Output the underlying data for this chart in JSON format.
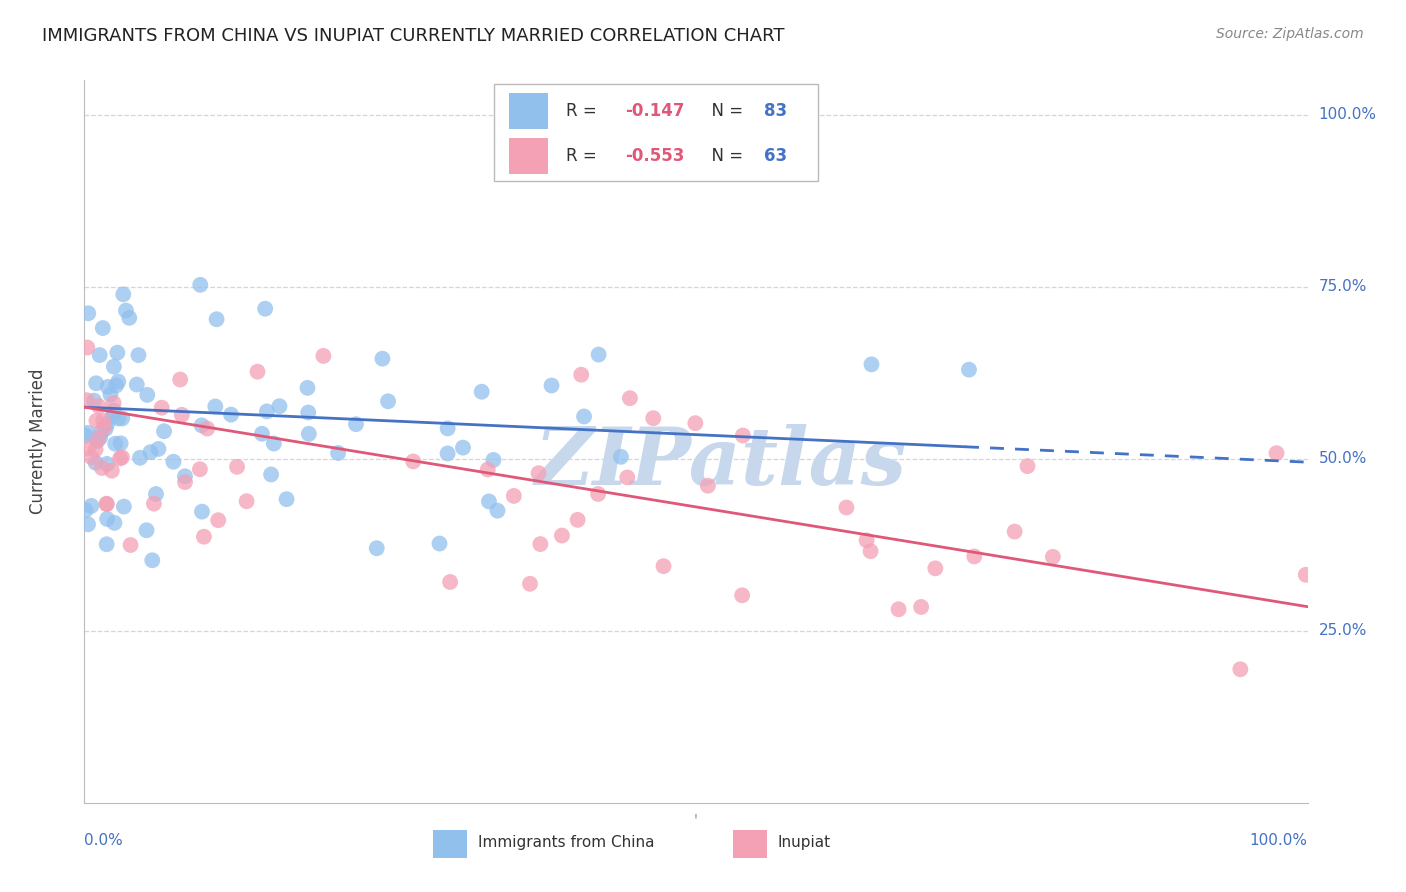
{
  "title": "IMMIGRANTS FROM CHINA VS INUPIAT CURRENTLY MARRIED CORRELATION CHART",
  "source": "Source: ZipAtlas.com",
  "ylabel": "Currently Married",
  "R_china": -0.147,
  "N_china": 83,
  "R_inupiat": -0.553,
  "N_inupiat": 63,
  "color_china": "#92C0ED",
  "color_inupiat": "#F4A0B5",
  "line_color_china": "#4472C4",
  "line_color_inupiat": "#E05878",
  "background_color": "#FFFFFF",
  "grid_color": "#CCCCCC",
  "title_color": "#222222",
  "source_color": "#888888",
  "axis_label_color": "#4472C4",
  "watermark_color": "#C8D8EC",
  "china_intercept": 0.575,
  "china_slope": -0.08,
  "inupiat_intercept": 0.58,
  "inupiat_slope": -0.32
}
